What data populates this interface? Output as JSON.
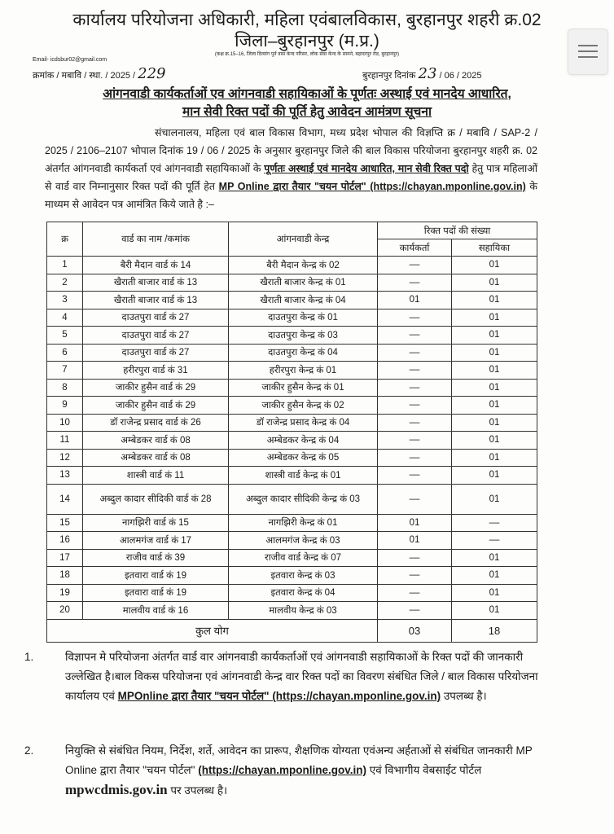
{
  "header": {
    "title_line1": "कार्यालय परियोजना अधिकारी, महिला एवंबालविकास, बुरहानपुर शहरी क्र.02",
    "title_line2": "जिला–बुरहानपुर (म.प्र.)",
    "address": "(कक्ष क्र.15–16, जिला दिव्यांग पुर्न वास केन्द परिसर, लोक सेवा केन्द के सामने, बहादरपुर रोड, बुरहानपुर)",
    "email": "Email- icdsbur02@gmail.com",
    "ref_prefix": "क्रमांक / मबावि / स्था. / 2025 /",
    "ref_number_handwritten": "229",
    "date_prefix": "बुरहानपुर दिनांक",
    "date_day_handwritten": "23",
    "date_suffix": "/ 06 / 2025"
  },
  "subject": {
    "line1": "आंगनवाडी कार्यकर्ताओं एव आंगनवाडी सहायिकाओं के पूर्णतः अस्थाई एवं मानदेय आधारित,",
    "line2": "मान सेवी रिक्त पदों की पूर्ति हेतु आवेदन आमंत्रण सूचना"
  },
  "body": {
    "p1": "संचालनालय, महिला एवं बाल विकास विभाग, मध्य प्रदेश भोपाल की विज्ञप्ति क्र / मबावि / SAP-2 / 2025 / 2106–2107 भोपाल दिनांक 19 / 06 / 2025 के अनुसार बुरहानपुर जिले की बाल विकास परियोजना बुरहानपुर शहरी क्र. 02 अंतर्गत आंगनवाडी कार्यकर्ता एवं आंगनवाडी सहायिकाओं के",
    "p1_u1": "पूर्णतः अस्थाई एवं मानदेय आधारित, मान सेवी रिक्त पदो",
    "p1_mid": "हेतु पात्र महिलाओं से वार्ड वार निम्नानुसार रिक्त पदों की पूर्ति हेत",
    "p1_u2": "MP Online द्वारा तैयार \"चयन पोर्टल\" (https://chayan.mponline.gov.in)",
    "p1_end": "के माध्यम से आवेदन पत्र आमंत्रित किये जाते है :–"
  },
  "table": {
    "headers": {
      "sn": "क्र",
      "ward": "वार्ड का नाम /कमांक",
      "kendra": "आंगनवाडी केन्द्र",
      "vacancies": "रिक्त पदों की संख्या",
      "worker": "कार्यकर्ता",
      "helper": "सहायिका"
    },
    "rows": [
      {
        "sn": "1",
        "ward": "बैरी मैदान वार्ड कं 14",
        "kendra": "बैरी मैदान केन्द्र कं 02",
        "worker": "––",
        "helper": "01"
      },
      {
        "sn": "2",
        "ward": "खैराती बाजार वार्ड कं 13",
        "kendra": "खैराती बाजार केन्द्र कं 01",
        "worker": "––",
        "helper": "01"
      },
      {
        "sn": "3",
        "ward": "खैराती बाजार वार्ड कं 13",
        "kendra": "खैराती बाजार केन्द्र कं 04",
        "worker": "01",
        "helper": "01"
      },
      {
        "sn": "4",
        "ward": "दाउतपुरा वार्ड कं 27",
        "kendra": "दाउतपुरा केन्द्र कं 01",
        "worker": "––",
        "helper": "01"
      },
      {
        "sn": "5",
        "ward": "दाउतपुरा वार्ड कं 27",
        "kendra": "दाउतपुरा केन्द्र कं 03",
        "worker": "––",
        "helper": "01"
      },
      {
        "sn": "6",
        "ward": "दाउतपुरा वार्ड कं 27",
        "kendra": "दाउतपुरा केन्द्र कं 04",
        "worker": "––",
        "helper": "01"
      },
      {
        "sn": "7",
        "ward": "हरीरपुरा वार्ड कं 31",
        "kendra": "हरीरपुरा केन्द्र कं 01",
        "worker": "––",
        "helper": "01"
      },
      {
        "sn": "8",
        "ward": "जाकीर हुसैन वार्ड कं 29",
        "kendra": "जाकीर हुसैन केन्द्र कं 01",
        "worker": "––",
        "helper": "01"
      },
      {
        "sn": "9",
        "ward": "जाकीर हुसैन वार्ड कं 29",
        "kendra": "जाकीर हुसैन केन्द्र कं 02",
        "worker": "––",
        "helper": "01"
      },
      {
        "sn": "10",
        "ward": "डॉ राजेन्द्र प्रसाद वार्ड कं 26",
        "kendra": "डॉ राजेन्द्र प्रसाद केन्द्र कं 04",
        "worker": "––",
        "helper": "01"
      },
      {
        "sn": "11",
        "ward": "अम्बेडकर वार्ड कं 08",
        "kendra": "अम्बेडकर केन्द्र कं 04",
        "worker": "––",
        "helper": "01"
      },
      {
        "sn": "12",
        "ward": "अम्बेडकर वार्ड कं 08",
        "kendra": "अम्बेडकर केन्द्र कं 05",
        "worker": "––",
        "helper": "01"
      },
      {
        "sn": "13",
        "ward": "शास्त्री वार्ड कं 11",
        "kendra": "शास्त्री वार्ड केन्द्र कं 01",
        "worker": "––",
        "helper": "01"
      },
      {
        "sn": "14",
        "ward": "अब्दुल कादार सीदिकी वार्ड कं 28",
        "kendra": "अब्दुल कादार सीदिकी केन्द्र कं 03",
        "worker": "––",
        "helper": "01"
      },
      {
        "sn": "15",
        "ward": "नागझिरी वार्ड कं 15",
        "kendra": "नागझिरी केन्द्र कं 01",
        "worker": "01",
        "helper": "––"
      },
      {
        "sn": "16",
        "ward": "आलमगंज वार्ड कं 17",
        "kendra": "आलमगंज केन्द्र कं 03",
        "worker": "01",
        "helper": "––"
      },
      {
        "sn": "17",
        "ward": "राजीव वार्ड कं 39",
        "kendra": "राजीव वार्ड केन्द्र कं 07",
        "worker": "––",
        "helper": "01"
      },
      {
        "sn": "18",
        "ward": "इतवारा वार्ड कं 19",
        "kendra": "इतवारा केन्द्र कं 03",
        "worker": "––",
        "helper": "01"
      },
      {
        "sn": "19",
        "ward": "इतवारा वार्ड कं 19",
        "kendra": "इतवारा केन्द्र कं 04",
        "worker": "––",
        "helper": "01"
      },
      {
        "sn": "20",
        "ward": "मालवीय वार्ड कं 16",
        "kendra": "मालवीय केन्द्र कं 03",
        "worker": "––",
        "helper": "01"
      }
    ],
    "total": {
      "label": "कुल योग",
      "worker": "03",
      "helper": "18"
    }
  },
  "notes": [
    {
      "num": "1.",
      "text": "विज्ञापन मे परियोजना अंतर्गत वार्ड वार आंगनवाडी कार्यकर्ताओं एवं आंगनवाडी सहायिकाओं के रिक्त पदों की जानकारी उल्लेखित है।बाल विकस परियोजना एवं आंगनवाडी केन्द्र वार रिक्त पदों का विवरण संबंधित जिले / बाल विकास परियोजना कार्यालय एवं",
      "u": "MPOnline द्वारा तैयार \"चयन पोर्टल\" (https://chayan.mponline.gov.in)",
      "end": "उपलब्ध है।"
    },
    {
      "num": "2.",
      "text": "नियुक्ति से संबंधित नियम, निर्देश, शर्ते, आवेदन का प्रारूप, शैक्षणिक योग्यता एवंअन्य अर्हताओं से संबंधित जानकारी MP Online द्वारा तैयार \"चयन पोर्टल\"",
      "u": "(https://chayan.mponline.gov.in)",
      "end": "एवं विभागीय वेबसाईट पोर्टल",
      "site": "mpwcdmis.gov.in",
      "end2": "पर उपलब्ध है।"
    }
  ],
  "viewer": {
    "menu_icon": "hamburger-menu-icon"
  }
}
